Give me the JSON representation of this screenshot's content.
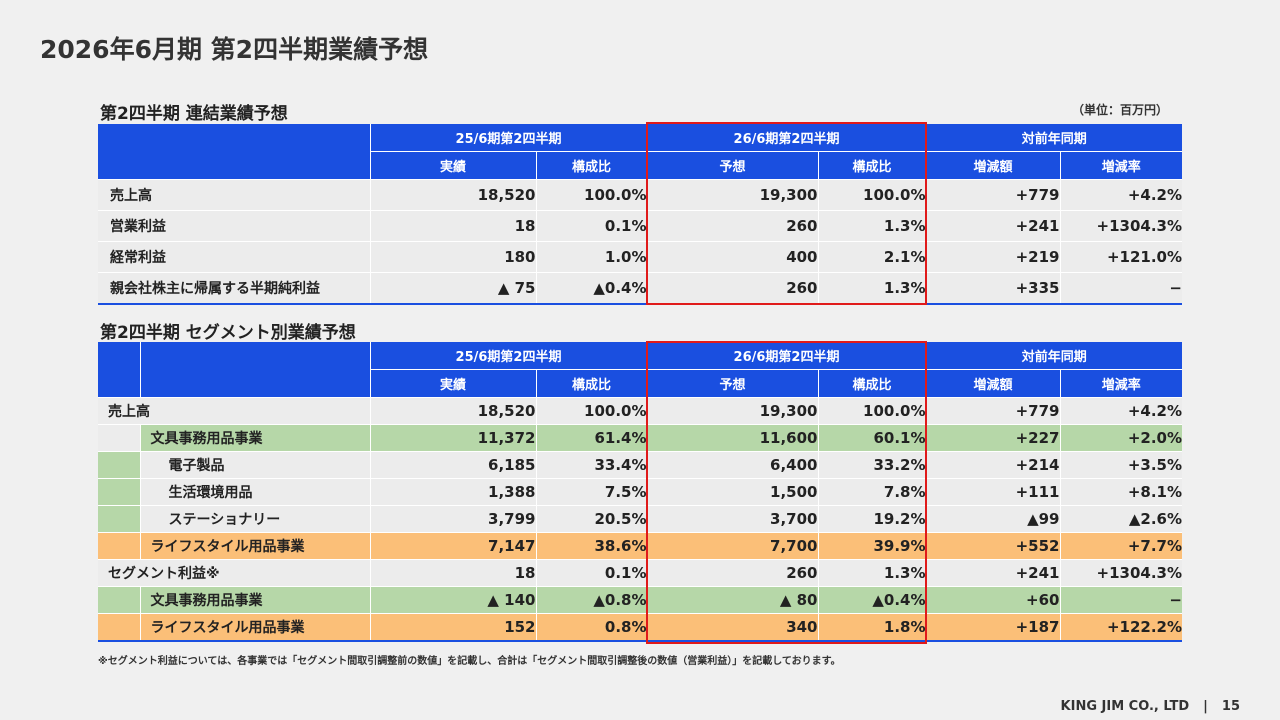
{
  "page_title": "2026年6月期 第2四半期業績予想",
  "unit": "（単位：百万円）",
  "headers": {
    "period_prev": "25/6期第2四半期",
    "period_curr": "26/6期第2四半期",
    "yoy": "対前年同期",
    "actual": "実績",
    "ratio": "構成比",
    "forecast": "予想",
    "change_amount": "増減額",
    "change_rate": "増減率"
  },
  "consolidated": {
    "title": "第2四半期 連結業績予想",
    "rows": [
      {
        "label": "売上高",
        "prev": "18,520",
        "prev_ratio": "100.0%",
        "curr": "19,300",
        "curr_ratio": "100.0%",
        "diff": "+779",
        "rate": "+4.2%"
      },
      {
        "label": "営業利益",
        "prev": "18",
        "prev_ratio": "0.1%",
        "curr": "260",
        "curr_ratio": "1.3%",
        "diff": "+241",
        "rate": "+1304.3%"
      },
      {
        "label": "経常利益",
        "prev": "180",
        "prev_ratio": "1.0%",
        "curr": "400",
        "curr_ratio": "2.1%",
        "diff": "+219",
        "rate": "+121.0%"
      },
      {
        "label": "親会社株主に帰属する半期純利益",
        "prev": "▲ 75",
        "prev_ratio": "▲0.4%",
        "curr": "260",
        "curr_ratio": "1.3%",
        "diff": "+335",
        "rate": "−"
      }
    ]
  },
  "segment": {
    "title": "第2四半期 セグメント別業績予想",
    "rows": [
      {
        "label": "売上高",
        "prev": "18,520",
        "prev_ratio": "100.0%",
        "curr": "19,300",
        "curr_ratio": "100.0%",
        "diff": "+779",
        "rate": "+4.2%"
      },
      {
        "label": "文具事務用品事業",
        "prev": "11,372",
        "prev_ratio": "61.4%",
        "curr": "11,600",
        "curr_ratio": "60.1%",
        "diff": "+227",
        "rate": "+2.0%"
      },
      {
        "label": "電子製品",
        "prev": "6,185",
        "prev_ratio": "33.4%",
        "curr": "6,400",
        "curr_ratio": "33.2%",
        "diff": "+214",
        "rate": "+3.5%"
      },
      {
        "label": "生活環境用品",
        "prev": "1,388",
        "prev_ratio": "7.5%",
        "curr": "1,500",
        "curr_ratio": "7.8%",
        "diff": "+111",
        "rate": "+8.1%"
      },
      {
        "label": "ステーショナリー",
        "prev": "3,799",
        "prev_ratio": "20.5%",
        "curr": "3,700",
        "curr_ratio": "19.2%",
        "diff": "▲99",
        "rate": "▲2.6%"
      },
      {
        "label": "ライフスタイル用品事業",
        "prev": "7,147",
        "prev_ratio": "38.6%",
        "curr": "7,700",
        "curr_ratio": "39.9%",
        "diff": "+552",
        "rate": "+7.7%"
      },
      {
        "label": "セグメント利益※",
        "prev": "18",
        "prev_ratio": "0.1%",
        "curr": "260",
        "curr_ratio": "1.3%",
        "diff": "+241",
        "rate": "+1304.3%"
      },
      {
        "label": "文具事務用品事業",
        "prev": "▲ 140",
        "prev_ratio": "▲0.8%",
        "curr": "▲ 80",
        "curr_ratio": "▲0.4%",
        "diff": "+60",
        "rate": "−"
      },
      {
        "label": "ライフスタイル用品事業",
        "prev": "152",
        "prev_ratio": "0.8%",
        "curr": "340",
        "curr_ratio": "1.8%",
        "diff": "+187",
        "rate": "+122.2%"
      }
    ]
  },
  "footnote": "※セグメント利益については、各事業では「セグメント間取引調整前の数値」を記載し、合計は「セグメント間取引調整後の数値（営業利益）」を記載しております。",
  "footer": {
    "company": "KING JIM CO., LTD",
    "separator": "|",
    "page": "15"
  },
  "colors": {
    "header_blue": "#1a4fe0",
    "highlight_red": "#e01a1a",
    "stationery_green": "#b6d7a8",
    "lifestyle_orange": "#fbbf78"
  }
}
